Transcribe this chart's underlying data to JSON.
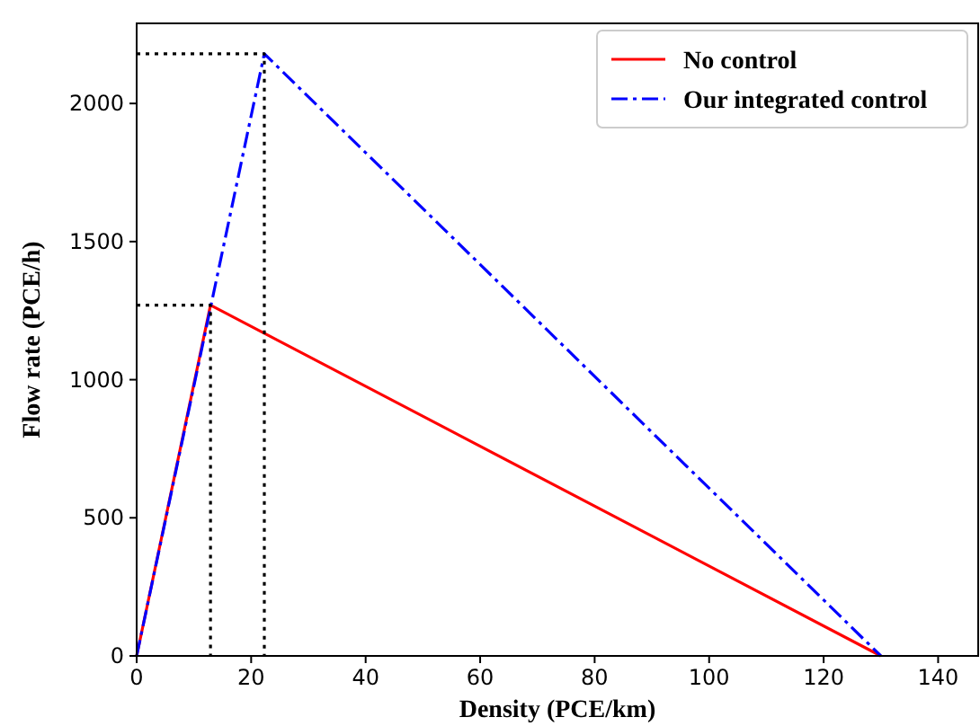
{
  "chart_data": {
    "type": "line",
    "xlabel": "Density (PCE/km)",
    "ylabel": "Flow rate (PCE/h)",
    "xlim": [
      0,
      147
    ],
    "ylim": [
      0,
      2290
    ],
    "xticks": [
      0,
      20,
      40,
      60,
      80,
      100,
      120,
      140
    ],
    "yticks": [
      0,
      500,
      1000,
      1500,
      2000
    ],
    "grid": false,
    "legend": "top right",
    "series": [
      {
        "name": "No control",
        "color": "#ff0000",
        "x": [
          0,
          12.9,
          130
        ],
        "values": [
          0,
          1270,
          0
        ],
        "line_style": "solid"
      },
      {
        "name": "Our integrated control",
        "color": "#0000ff",
        "x": [
          0,
          22.3,
          130
        ],
        "values": [
          0,
          2180,
          0
        ],
        "line_style": "dashed"
      },
      {
        "color": "#000000",
        "x": [
          0,
          12.9,
          12.9
        ],
        "values": [
          1270,
          1270,
          0
        ],
        "line_style": "dotted"
      },
      {
        "color": "#000000",
        "x": [
          0,
          22.3,
          22.3
        ],
        "values": [
          2180,
          2180,
          0
        ],
        "line_style": "dotted"
      }
    ]
  }
}
